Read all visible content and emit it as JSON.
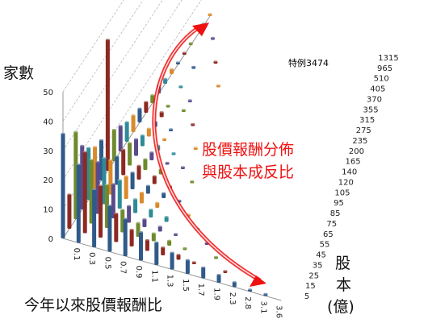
{
  "chart_data": {
    "type": "bar",
    "chart_form": "3d-column",
    "z_axis": {
      "label": "家數",
      "ticks": [
        0,
        10,
        20,
        30,
        40,
        50
      ],
      "range": [
        0,
        50
      ]
    },
    "x_axis": {
      "label": "今年以來股價報酬比",
      "ticks": [
        "0.1",
        "0.3",
        "0.5",
        "0.7",
        "0.9",
        "1.1",
        "1.3",
        "1.5",
        "1.7",
        "1.9",
        "2.3",
        "2.8",
        "3.1",
        "3.6"
      ]
    },
    "y_axis": {
      "label_line1": "股",
      "label_line2": "本",
      "label_line3": "(億)",
      "ticks": [
        "5",
        "15",
        "25",
        "35",
        "45",
        "55",
        "65",
        "75",
        "85",
        "95",
        "105",
        "120",
        "140",
        "165",
        "200",
        "235",
        "275",
        "315",
        "355",
        "370",
        "405",
        "510",
        "965",
        "1315"
      ]
    },
    "annotation": {
      "line1": "股價報酬分佈",
      "line2": "與股本成反比"
    },
    "callout": "特例3474",
    "colors": {
      "dark_blue": "#2f5a8a",
      "dark_red": "#8c2a22",
      "olive_green": "#6f8a2e",
      "purple": "#5a4a8a",
      "teal": "#2f8a98",
      "orange": "#d98a2a",
      "annotation_red": "#ee1111"
    },
    "series": [
      {
        "color": "#2f5a8a",
        "bars": [
          {
            "x": 0,
            "y": 0,
            "v": 36
          },
          {
            "x": 1,
            "y": 0,
            "v": 27
          },
          {
            "x": 2,
            "y": 0,
            "v": 20
          },
          {
            "x": 3,
            "y": 0,
            "v": 16
          },
          {
            "x": 4,
            "y": 0,
            "v": 13
          },
          {
            "x": 5,
            "y": 0,
            "v": 10
          },
          {
            "x": 6,
            "y": 0,
            "v": 8
          },
          {
            "x": 7,
            "y": 0,
            "v": 6
          },
          {
            "x": 8,
            "y": 0,
            "v": 5
          },
          {
            "x": 9,
            "y": 0,
            "v": 4
          },
          {
            "x": 10,
            "y": 0,
            "v": 3
          },
          {
            "x": 11,
            "y": 0,
            "v": 2
          },
          {
            "x": 12,
            "y": 0,
            "v": 1
          },
          {
            "x": 13,
            "y": 0,
            "v": 1
          }
        ]
      },
      {
        "color": "#8c2a22",
        "bars": [
          {
            "x": 0,
            "y": 1,
            "v": 12
          },
          {
            "x": 1,
            "y": 1,
            "v": 28
          },
          {
            "x": 2,
            "y": 1,
            "v": 18
          },
          {
            "x": 3,
            "y": 1,
            "v": 10
          },
          {
            "x": 4,
            "y": 1,
            "v": 6
          },
          {
            "x": 5,
            "y": 1,
            "v": 4
          },
          {
            "x": 6,
            "y": 1,
            "v": 3
          },
          {
            "x": 7,
            "y": 1,
            "v": 2
          },
          {
            "x": 8,
            "y": 1,
            "v": 1
          },
          {
            "x": 10,
            "y": 1,
            "v": 1
          },
          {
            "x": 12,
            "y": 1,
            "v": 1
          }
        ]
      },
      {
        "color": "#6f8a2e",
        "bars": [
          {
            "x": 0,
            "y": 2,
            "v": 30
          },
          {
            "x": 1,
            "y": 2,
            "v": 22
          },
          {
            "x": 2,
            "y": 2,
            "v": 15
          },
          {
            "x": 3,
            "y": 2,
            "v": 8
          },
          {
            "x": 4,
            "y": 2,
            "v": 5
          },
          {
            "x": 5,
            "y": 2,
            "v": 3
          },
          {
            "x": 6,
            "y": 2,
            "v": 2
          },
          {
            "x": 7,
            "y": 2,
            "v": 1
          },
          {
            "x": 9,
            "y": 2,
            "v": 1
          }
        ]
      },
      {
        "color": "#5a4a8a",
        "bars": [
          {
            "x": 0,
            "y": 3,
            "v": 22
          },
          {
            "x": 1,
            "y": 3,
            "v": 18
          },
          {
            "x": 2,
            "y": 3,
            "v": 12
          },
          {
            "x": 3,
            "y": 3,
            "v": 6
          },
          {
            "x": 4,
            "y": 3,
            "v": 3
          },
          {
            "x": 5,
            "y": 3,
            "v": 2
          },
          {
            "x": 6,
            "y": 3,
            "v": 1
          },
          {
            "x": 8,
            "y": 3,
            "v": 1
          }
        ]
      },
      {
        "color": "#2f8a98",
        "bars": [
          {
            "x": 0,
            "y": 4,
            "v": 18
          },
          {
            "x": 1,
            "y": 4,
            "v": 16
          },
          {
            "x": 2,
            "y": 4,
            "v": 10
          },
          {
            "x": 3,
            "y": 4,
            "v": 5
          },
          {
            "x": 4,
            "y": 4,
            "v": 3
          },
          {
            "x": 5,
            "y": 4,
            "v": 2
          },
          {
            "x": 7,
            "y": 4,
            "v": 1
          }
        ]
      },
      {
        "color": "#d98a2a",
        "bars": [
          {
            "x": 0,
            "y": 5,
            "v": 15
          },
          {
            "x": 1,
            "y": 5,
            "v": 12
          },
          {
            "x": 2,
            "y": 5,
            "v": 8
          },
          {
            "x": 3,
            "y": 5,
            "v": 4
          },
          {
            "x": 4,
            "y": 5,
            "v": 2
          },
          {
            "x": 6,
            "y": 5,
            "v": 1
          }
        ]
      },
      {
        "color": "#2f5a8a",
        "bars": [
          {
            "x": 0,
            "y": 6,
            "v": 14
          },
          {
            "x": 1,
            "y": 6,
            "v": 10
          },
          {
            "x": 2,
            "y": 6,
            "v": 6
          },
          {
            "x": 3,
            "y": 6,
            "v": 3
          },
          {
            "x": 4,
            "y": 6,
            "v": 2
          },
          {
            "x": 5,
            "y": 6,
            "v": 1
          }
        ]
      },
      {
        "color": "#8c2a22",
        "bars": [
          {
            "x": 0,
            "y": 7,
            "v": 45
          },
          {
            "x": 1,
            "y": 7,
            "v": 9
          },
          {
            "x": 2,
            "y": 7,
            "v": 5
          },
          {
            "x": 3,
            "y": 7,
            "v": 3
          },
          {
            "x": 4,
            "y": 7,
            "v": 1
          }
        ]
      },
      {
        "color": "#6f8a2e",
        "bars": [
          {
            "x": 0,
            "y": 8,
            "v": 11
          },
          {
            "x": 1,
            "y": 8,
            "v": 8
          },
          {
            "x": 2,
            "y": 8,
            "v": 4
          },
          {
            "x": 3,
            "y": 8,
            "v": 2
          },
          {
            "x": 5,
            "y": 8,
            "v": 1
          }
        ]
      },
      {
        "color": "#5a4a8a",
        "bars": [
          {
            "x": 0,
            "y": 9,
            "v": 9
          },
          {
            "x": 1,
            "y": 9,
            "v": 6
          },
          {
            "x": 2,
            "y": 9,
            "v": 3
          },
          {
            "x": 3,
            "y": 9,
            "v": 1
          },
          {
            "x": 4,
            "y": 9,
            "v": 1
          }
        ]
      },
      {
        "color": "#2f8a98",
        "bars": [
          {
            "x": 0,
            "y": 10,
            "v": 7
          },
          {
            "x": 1,
            "y": 10,
            "v": 4
          },
          {
            "x": 2,
            "y": 10,
            "v": 2
          },
          {
            "x": 3,
            "y": 10,
            "v": 1
          }
        ]
      },
      {
        "color": "#d98a2a",
        "bars": [
          {
            "x": 0,
            "y": 11,
            "v": 6
          },
          {
            "x": 1,
            "y": 11,
            "v": 3
          },
          {
            "x": 2,
            "y": 11,
            "v": 1
          },
          {
            "x": 4,
            "y": 11,
            "v": 1
          }
        ]
      },
      {
        "color": "#2f5a8a",
        "bars": [
          {
            "x": 0,
            "y": 12,
            "v": 5
          },
          {
            "x": 1,
            "y": 12,
            "v": 2
          },
          {
            "x": 2,
            "y": 12,
            "v": 1
          }
        ]
      },
      {
        "color": "#8c2a22",
        "bars": [
          {
            "x": 0,
            "y": 13,
            "v": 4
          },
          {
            "x": 1,
            "y": 13,
            "v": 2
          },
          {
            "x": 3,
            "y": 13,
            "v": 1
          }
        ]
      },
      {
        "color": "#6f8a2e",
        "bars": [
          {
            "x": 0,
            "y": 14,
            "v": 3
          },
          {
            "x": 1,
            "y": 14,
            "v": 1
          },
          {
            "x": 2,
            "y": 14,
            "v": 1
          }
        ]
      },
      {
        "color": "#5a4a8a",
        "bars": [
          {
            "x": 0,
            "y": 15,
            "v": 3
          },
          {
            "x": 2,
            "y": 15,
            "v": 1
          }
        ]
      },
      {
        "color": "#2f8a98",
        "bars": [
          {
            "x": 0,
            "y": 16,
            "v": 2
          },
          {
            "x": 1,
            "y": 16,
            "v": 1
          }
        ]
      },
      {
        "color": "#d98a2a",
        "bars": [
          {
            "x": 0,
            "y": 17,
            "v": 2
          },
          {
            "x": 3,
            "y": 17,
            "v": 1
          }
        ]
      },
      {
        "color": "#2f5a8a",
        "bars": [
          {
            "x": 0,
            "y": 18,
            "v": 1
          },
          {
            "x": 1,
            "y": 18,
            "v": 1
          }
        ]
      },
      {
        "color": "#8c2a22",
        "bars": [
          {
            "x": 0,
            "y": 19,
            "v": 1
          },
          {
            "x": 2,
            "y": 19,
            "v": 1
          }
        ]
      },
      {
        "color": "#6f8a2e",
        "bars": [
          {
            "x": 0,
            "y": 20,
            "v": 1
          }
        ]
      },
      {
        "color": "#5a4a8a",
        "bars": [
          {
            "x": 1,
            "y": 21,
            "v": 1
          }
        ]
      },
      {
        "color": "#2f8a98",
        "bars": [
          {
            "x": 0,
            "y": 22,
            "v": 1
          }
        ]
      },
      {
        "color": "#d98a2a",
        "bars": [
          {
            "x": 0,
            "y": 23,
            "v": 1
          }
        ]
      }
    ]
  }
}
